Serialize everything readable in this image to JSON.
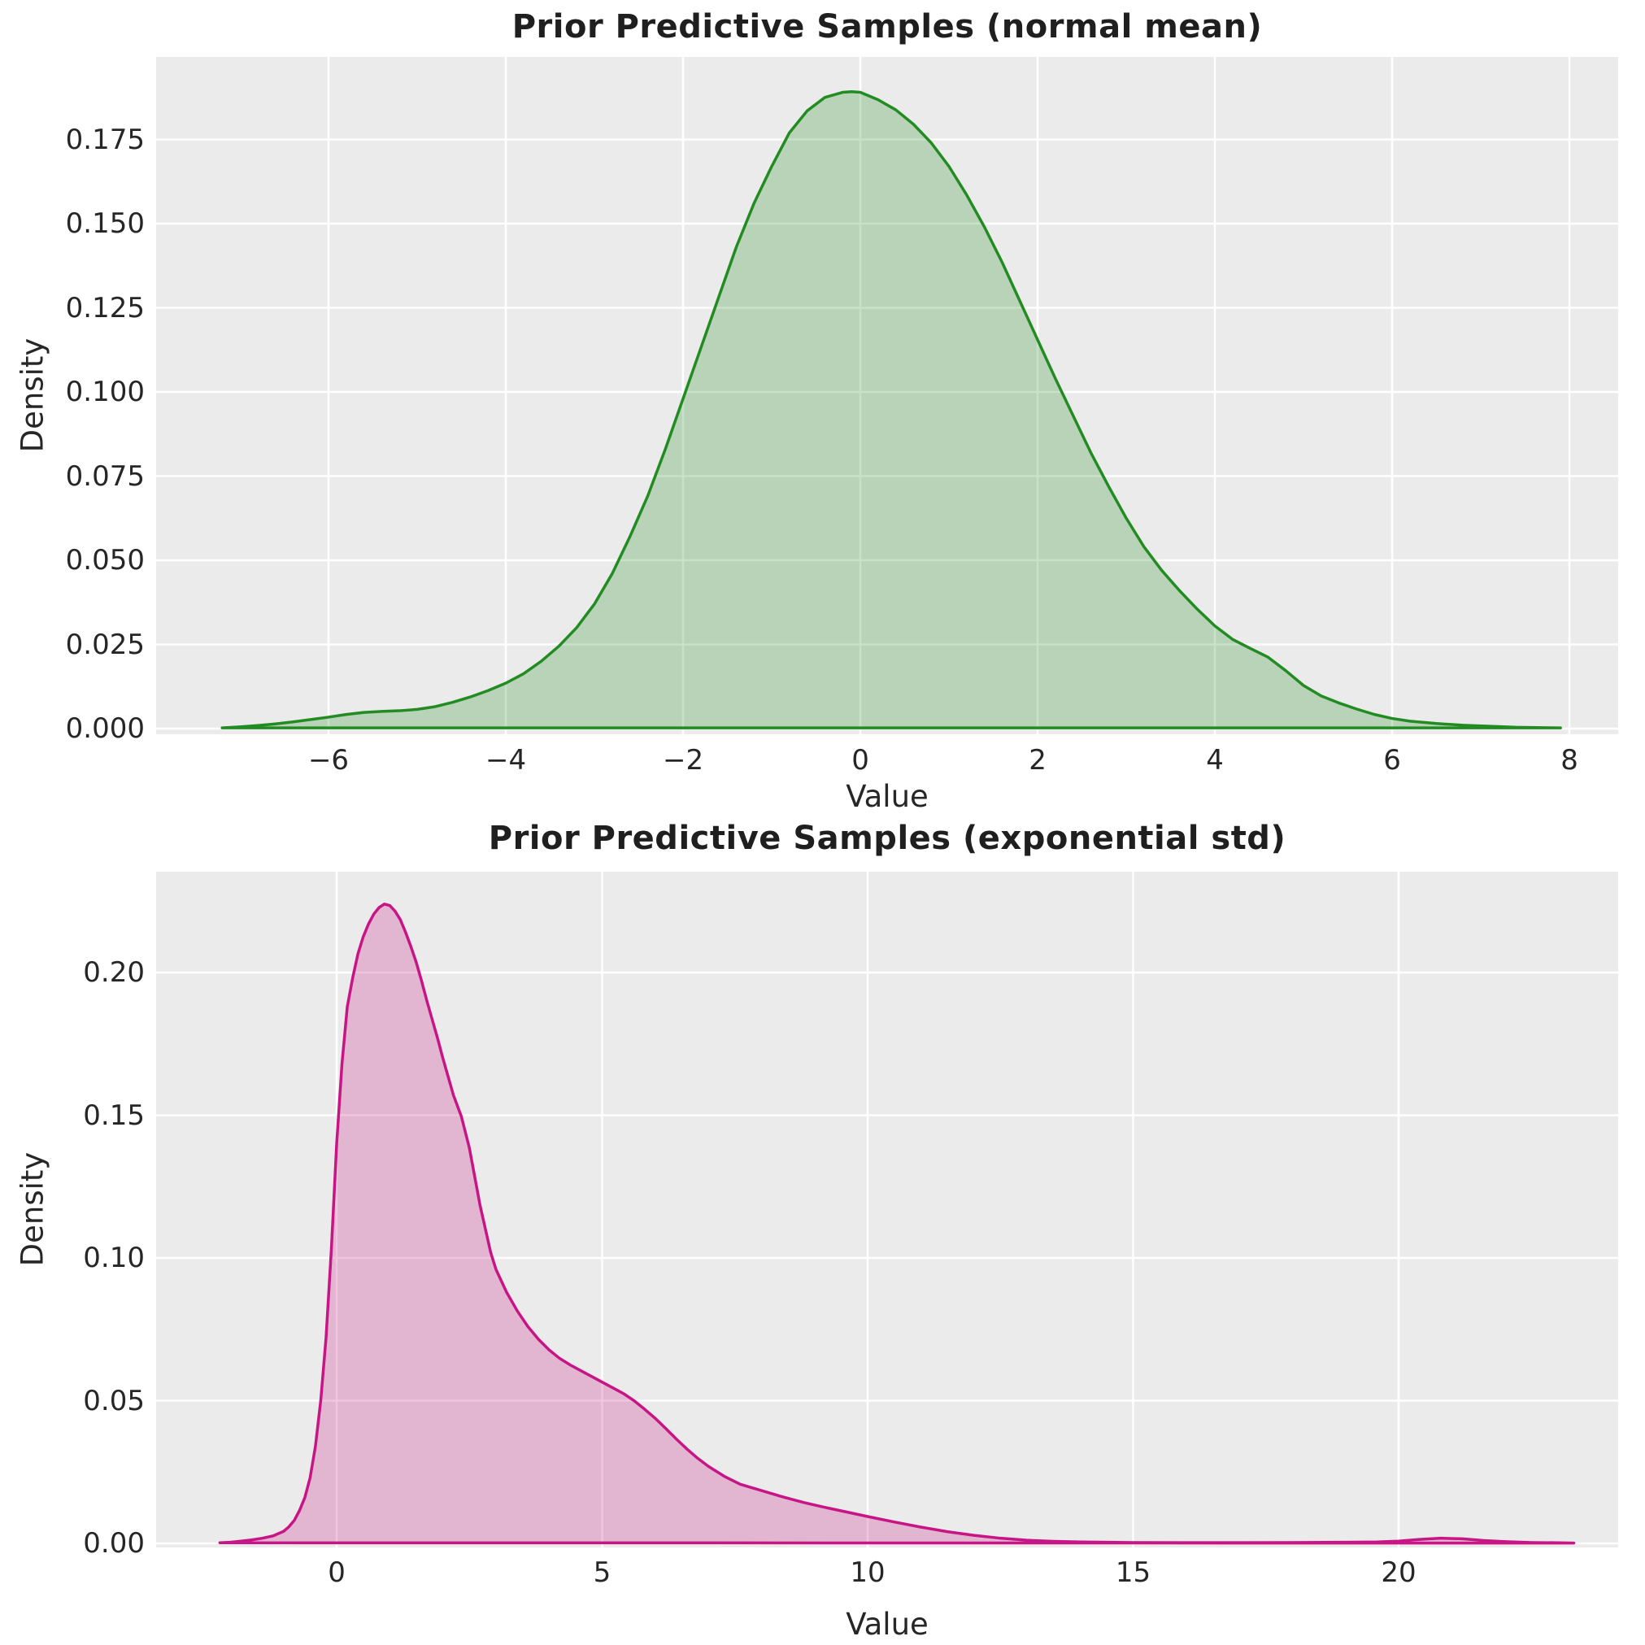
{
  "figure": {
    "background": "#ffffff",
    "panel_background": "#ebebeb",
    "grid_color": "#ffffff",
    "text_color": "#262626",
    "title_color": "#1f1f1f"
  },
  "chart_data": [
    {
      "type": "area",
      "title": "Prior Predictive Samples (normal mean)",
      "xlabel": "Value",
      "ylabel": "Density",
      "legend": "none",
      "grid": true,
      "line_color": "#228B22",
      "fill_opacity": 0.25,
      "xlim": [
        -7.945,
        8.55
      ],
      "ylim": [
        -0.00169,
        0.19952
      ],
      "xtick_values": [
        -6,
        -4,
        -2,
        0,
        2,
        4,
        6,
        8
      ],
      "xtick_labels": [
        "−6",
        "−4",
        "−2",
        "0",
        "2",
        "4",
        "6",
        "8"
      ],
      "ytick_values": [
        0.0,
        0.025,
        0.05,
        0.075,
        0.1,
        0.125,
        0.15,
        0.175
      ],
      "ytick_labels": [
        "0.000",
        "0.025",
        "0.050",
        "0.075",
        "0.100",
        "0.125",
        "0.150",
        "0.175"
      ],
      "peak": {
        "x": -0.1,
        "density": 0.189
      },
      "points": [
        [
          -7.2,
          0.0002
        ],
        [
          -7.0,
          0.0005
        ],
        [
          -6.8,
          0.0009
        ],
        [
          -6.6,
          0.0014
        ],
        [
          -6.4,
          0.002
        ],
        [
          -6.2,
          0.0027
        ],
        [
          -6.0,
          0.0034
        ],
        [
          -5.8,
          0.0042
        ],
        [
          -5.6,
          0.0048
        ],
        [
          -5.4,
          0.0051
        ],
        [
          -5.2,
          0.0053
        ],
        [
          -5.0,
          0.0057
        ],
        [
          -4.8,
          0.0065
        ],
        [
          -4.6,
          0.0078
        ],
        [
          -4.4,
          0.0094
        ],
        [
          -4.2,
          0.0113
        ],
        [
          -4.0,
          0.0135
        ],
        [
          -3.8,
          0.0163
        ],
        [
          -3.6,
          0.02
        ],
        [
          -3.4,
          0.0245
        ],
        [
          -3.2,
          0.03
        ],
        [
          -3.0,
          0.037
        ],
        [
          -2.8,
          0.046
        ],
        [
          -2.6,
          0.057
        ],
        [
          -2.4,
          0.069
        ],
        [
          -2.2,
          0.083
        ],
        [
          -2.0,
          0.098
        ],
        [
          -1.8,
          0.113
        ],
        [
          -1.6,
          0.128
        ],
        [
          -1.4,
          0.143
        ],
        [
          -1.2,
          0.156
        ],
        [
          -1.0,
          0.167
        ],
        [
          -0.8,
          0.177
        ],
        [
          -0.6,
          0.1835
        ],
        [
          -0.4,
          0.1875
        ],
        [
          -0.2,
          0.189
        ],
        [
          -0.1,
          0.1892
        ],
        [
          0.0,
          0.189
        ],
        [
          0.2,
          0.1868
        ],
        [
          0.4,
          0.1838
        ],
        [
          0.6,
          0.1795
        ],
        [
          0.8,
          0.174
        ],
        [
          1.0,
          0.167
        ],
        [
          1.2,
          0.1585
        ],
        [
          1.4,
          0.149
        ],
        [
          1.6,
          0.1385
        ],
        [
          1.8,
          0.127
        ],
        [
          2.0,
          0.1155
        ],
        [
          2.2,
          0.104
        ],
        [
          2.4,
          0.093
        ],
        [
          2.6,
          0.082
        ],
        [
          2.8,
          0.072
        ],
        [
          3.0,
          0.0625
        ],
        [
          3.2,
          0.054
        ],
        [
          3.4,
          0.047
        ],
        [
          3.6,
          0.041
        ],
        [
          3.8,
          0.0355
        ],
        [
          4.0,
          0.0305
        ],
        [
          4.2,
          0.0265
        ],
        [
          4.4,
          0.0238
        ],
        [
          4.6,
          0.0212
        ],
        [
          4.8,
          0.0172
        ],
        [
          5.0,
          0.0128
        ],
        [
          5.2,
          0.0097
        ],
        [
          5.4,
          0.0076
        ],
        [
          5.6,
          0.0058
        ],
        [
          5.8,
          0.0042
        ],
        [
          6.0,
          0.003
        ],
        [
          6.2,
          0.0022
        ],
        [
          6.5,
          0.0015
        ],
        [
          6.8,
          0.001
        ],
        [
          7.1,
          0.0007
        ],
        [
          7.4,
          0.0004
        ],
        [
          7.9,
          0.0002
        ]
      ]
    },
    {
      "type": "area",
      "title": "Prior Predictive Samples (exponential std)",
      "xlabel": "Value",
      "ylabel": "Density",
      "legend": "none",
      "grid": true,
      "line_color": "#C71585",
      "fill_opacity": 0.25,
      "xlim": [
        -3.4,
        24.135
      ],
      "ylim": [
        -0.001425,
        0.23533
      ],
      "xtick_values": [
        0,
        5,
        10,
        15,
        20
      ],
      "xtick_labels": [
        "0",
        "5",
        "10",
        "15",
        "20"
      ],
      "ytick_values": [
        0.0,
        0.05,
        0.1,
        0.15,
        0.2
      ],
      "ytick_labels": [
        "0.00",
        "0.05",
        "0.10",
        "0.15",
        "0.20"
      ],
      "peak": {
        "x": 0.9,
        "density": 0.224
      },
      "points": [
        [
          -2.2,
          0.0002
        ],
        [
          -2.0,
          0.0004
        ],
        [
          -1.8,
          0.0008
        ],
        [
          -1.6,
          0.0012
        ],
        [
          -1.4,
          0.0018
        ],
        [
          -1.2,
          0.0026
        ],
        [
          -1.0,
          0.0042
        ],
        [
          -0.9,
          0.0058
        ],
        [
          -0.8,
          0.008
        ],
        [
          -0.7,
          0.0115
        ],
        [
          -0.6,
          0.016
        ],
        [
          -0.5,
          0.023
        ],
        [
          -0.4,
          0.034
        ],
        [
          -0.3,
          0.05
        ],
        [
          -0.2,
          0.072
        ],
        [
          -0.1,
          0.103
        ],
        [
          0.0,
          0.14
        ],
        [
          0.1,
          0.168
        ],
        [
          0.2,
          0.188
        ],
        [
          0.3,
          0.198
        ],
        [
          0.4,
          0.2065
        ],
        [
          0.5,
          0.2125
        ],
        [
          0.6,
          0.217
        ],
        [
          0.7,
          0.2205
        ],
        [
          0.8,
          0.2228
        ],
        [
          0.9,
          0.224
        ],
        [
          1.0,
          0.2235
        ],
        [
          1.1,
          0.2215
        ],
        [
          1.2,
          0.2185
        ],
        [
          1.3,
          0.214
        ],
        [
          1.4,
          0.209
        ],
        [
          1.5,
          0.2035
        ],
        [
          1.6,
          0.197
        ],
        [
          1.7,
          0.19
        ],
        [
          1.8,
          0.1835
        ],
        [
          1.9,
          0.177
        ],
        [
          2.0,
          0.17
        ],
        [
          2.1,
          0.1635
        ],
        [
          2.2,
          0.157
        ],
        [
          2.35,
          0.1495
        ],
        [
          2.5,
          0.1385
        ],
        [
          2.7,
          0.1185
        ],
        [
          2.9,
          0.102
        ],
        [
          3.0,
          0.096
        ],
        [
          3.2,
          0.088
        ],
        [
          3.4,
          0.0815
        ],
        [
          3.6,
          0.076
        ],
        [
          3.8,
          0.0715
        ],
        [
          4.0,
          0.0678
        ],
        [
          4.2,
          0.0648
        ],
        [
          4.4,
          0.0625
        ],
        [
          4.6,
          0.0605
        ],
        [
          4.8,
          0.0585
        ],
        [
          5.0,
          0.0565
        ],
        [
          5.2,
          0.0545
        ],
        [
          5.4,
          0.0525
        ],
        [
          5.6,
          0.05
        ],
        [
          5.8,
          0.047
        ],
        [
          6.0,
          0.0438
        ],
        [
          6.2,
          0.0402
        ],
        [
          6.4,
          0.0365
        ],
        [
          6.6,
          0.033
        ],
        [
          6.8,
          0.0298
        ],
        [
          7.0,
          0.027
        ],
        [
          7.3,
          0.0235
        ],
        [
          7.6,
          0.0207
        ],
        [
          8.0,
          0.0185
        ],
        [
          8.4,
          0.0163
        ],
        [
          8.8,
          0.0143
        ],
        [
          9.2,
          0.0126
        ],
        [
          9.6,
          0.011
        ],
        [
          10.0,
          0.0094
        ],
        [
          10.5,
          0.0075
        ],
        [
          11.0,
          0.0057
        ],
        [
          11.5,
          0.0041
        ],
        [
          12.0,
          0.0028
        ],
        [
          12.5,
          0.0018
        ],
        [
          13.0,
          0.0011
        ],
        [
          13.5,
          0.0007
        ],
        [
          14.0,
          0.0005
        ],
        [
          15.0,
          0.0003
        ],
        [
          16.0,
          0.00025
        ],
        [
          17.0,
          0.00025
        ],
        [
          18.0,
          0.0003
        ],
        [
          19.0,
          0.0004
        ],
        [
          19.6,
          0.0005
        ],
        [
          20.0,
          0.0008
        ],
        [
          20.4,
          0.0014
        ],
        [
          20.8,
          0.0018
        ],
        [
          21.2,
          0.0016
        ],
        [
          21.6,
          0.001
        ],
        [
          22.0,
          0.0006
        ],
        [
          22.5,
          0.0003
        ],
        [
          23.0,
          0.0002
        ],
        [
          23.3,
          0.0001
        ]
      ]
    }
  ]
}
